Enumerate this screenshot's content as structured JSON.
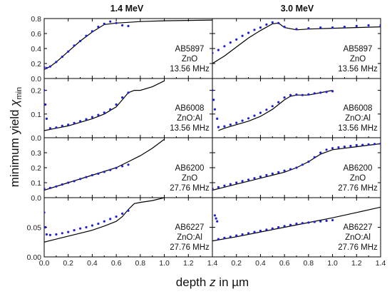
{
  "figure": {
    "column_titles": [
      "1.4 MeV",
      "3.0 MeV"
    ],
    "ylabel": {
      "prefix": "minimum yield ",
      "symbol": "χ",
      "subscript": "min"
    },
    "xlabel": {
      "prefix": "depth ",
      "variable": "z",
      "suffix": " in µm"
    }
  },
  "chart_data": [
    {
      "type": "scatter",
      "row": 0,
      "col": 0,
      "title": "1.4 MeV",
      "annotation": [
        "AB5897",
        "ZnO",
        "13.56 MHz"
      ],
      "xlim": [
        0,
        1.4
      ],
      "ylim": [
        0,
        0.8
      ],
      "xticks": [
        0.0,
        0.2,
        0.4,
        0.6,
        0.8,
        1.0,
        1.2,
        1.4
      ],
      "yticks": [
        0.0,
        0.2,
        0.4,
        0.6,
        0.8
      ],
      "ytick_labels": [
        "0.0",
        "0.2",
        "0.4",
        "0.6",
        "0.8"
      ],
      "series": [
        {
          "kind": "line",
          "x": [
            0,
            0.05,
            0.1,
            0.2,
            0.3,
            0.4,
            0.5,
            0.6,
            0.7,
            0.8,
            1.0,
            1.2,
            1.4
          ],
          "y": [
            0.12,
            0.16,
            0.22,
            0.36,
            0.5,
            0.62,
            0.72,
            0.74,
            0.75,
            0.76,
            0.77,
            0.775,
            0.78
          ]
        },
        {
          "kind": "points",
          "x": [
            0,
            0.02,
            0.05,
            0.1,
            0.15,
            0.2,
            0.25,
            0.3,
            0.35,
            0.4,
            0.45,
            0.5,
            0.55,
            0.6,
            0.65,
            0.7
          ],
          "y": [
            0.15,
            0.14,
            0.16,
            0.22,
            0.29,
            0.36,
            0.44,
            0.5,
            0.57,
            0.63,
            0.69,
            0.73,
            0.76,
            0.74,
            0.71,
            0.7
          ]
        }
      ]
    },
    {
      "type": "scatter",
      "row": 0,
      "col": 1,
      "title": "3.0 MeV",
      "annotation": [
        "AB5897",
        "ZnO",
        "13.56 MHz"
      ],
      "xlim": [
        0,
        1.4
      ],
      "ylim": [
        0,
        0.8
      ],
      "xticks": [
        0.0,
        0.2,
        0.4,
        0.6,
        0.8,
        1.0,
        1.2,
        1.4
      ],
      "yticks": [
        0.0,
        0.2,
        0.4,
        0.6,
        0.8
      ],
      "ytick_labels": [
        "",
        "",
        "",
        "",
        ""
      ],
      "series": [
        {
          "kind": "line",
          "x": [
            0,
            0.1,
            0.2,
            0.3,
            0.4,
            0.5,
            0.55,
            0.6,
            0.7,
            0.8,
            1.0,
            1.2,
            1.4
          ],
          "y": [
            0.2,
            0.3,
            0.42,
            0.54,
            0.64,
            0.73,
            0.74,
            0.68,
            0.65,
            0.66,
            0.67,
            0.68,
            0.69
          ]
        },
        {
          "kind": "points",
          "x": [
            0,
            0.05,
            0.1,
            0.15,
            0.2,
            0.25,
            0.3,
            0.35,
            0.4,
            0.45,
            0.5,
            0.55,
            0.6,
            0.7,
            0.8,
            0.9,
            1.0,
            1.1,
            1.2,
            1.3,
            1.4
          ],
          "y": [
            0.34,
            0.38,
            0.43,
            0.48,
            0.52,
            0.57,
            0.61,
            0.65,
            0.68,
            0.72,
            0.75,
            0.74,
            0.69,
            0.66,
            0.67,
            0.68,
            0.68,
            0.69,
            0.7,
            0.71,
            0.71
          ]
        }
      ]
    },
    {
      "type": "scatter",
      "row": 1,
      "col": 0,
      "annotation": [
        "AB6008",
        "ZnO:Al",
        "13.56 MHz"
      ],
      "xlim": [
        0,
        1.4
      ],
      "ylim": [
        0,
        0.25
      ],
      "xticks": [
        0.0,
        0.2,
        0.4,
        0.6,
        0.8,
        1.0,
        1.2,
        1.4
      ],
      "yticks": [
        0.0,
        0.1,
        0.2
      ],
      "ytick_labels": [
        "0.0",
        "0.1",
        "0.2"
      ],
      "series": [
        {
          "kind": "line",
          "x": [
            0,
            0.1,
            0.2,
            0.3,
            0.4,
            0.5,
            0.6,
            0.65,
            0.7,
            0.75,
            0.8,
            0.9,
            1.0
          ],
          "y": [
            0.03,
            0.04,
            0.05,
            0.065,
            0.08,
            0.1,
            0.13,
            0.16,
            0.19,
            0.2,
            0.2,
            0.215,
            0.24
          ]
        },
        {
          "kind": "points",
          "x": [
            0,
            0.01,
            0.02,
            0.05,
            0.1,
            0.15,
            0.2,
            0.25,
            0.3,
            0.35,
            0.4,
            0.45,
            0.5,
            0.55,
            0.6,
            0.65,
            0.7
          ],
          "y": [
            0.2,
            0.14,
            0.08,
            0.04,
            0.043,
            0.05,
            0.055,
            0.062,
            0.07,
            0.078,
            0.087,
            0.096,
            0.106,
            0.12,
            0.14,
            0.17,
            0.19
          ]
        }
      ]
    },
    {
      "type": "scatter",
      "row": 1,
      "col": 1,
      "annotation": [
        "AB6008",
        "ZnO:Al",
        "13.56 MHz"
      ],
      "xlim": [
        0,
        1.4
      ],
      "ylim": [
        0,
        0.25
      ],
      "xticks": [
        0.0,
        0.2,
        0.4,
        0.6,
        0.8,
        1.0,
        1.2,
        1.4
      ],
      "yticks": [
        0.0,
        0.1,
        0.2
      ],
      "ytick_labels": [
        "",
        "",
        ""
      ],
      "series": [
        {
          "kind": "line",
          "x": [
            0.05,
            0.1,
            0.2,
            0.3,
            0.4,
            0.5,
            0.6,
            0.65,
            0.7,
            0.8,
            0.9,
            1.0
          ],
          "y": [
            0.03,
            0.04,
            0.055,
            0.07,
            0.09,
            0.12,
            0.16,
            0.175,
            0.18,
            0.18,
            0.19,
            0.2
          ]
        },
        {
          "kind": "points",
          "x": [
            0,
            0.01,
            0.02,
            0.04,
            0.05,
            0.1,
            0.15,
            0.2,
            0.25,
            0.3,
            0.35,
            0.4,
            0.45,
            0.5,
            0.55,
            0.6,
            0.65,
            0.7,
            0.75,
            0.8,
            0.85,
            0.9,
            0.95,
            1.0
          ],
          "y": [
            0.2,
            0.16,
            0.12,
            0.08,
            0.045,
            0.048,
            0.055,
            0.063,
            0.072,
            0.082,
            0.093,
            0.105,
            0.118,
            0.133,
            0.15,
            0.17,
            0.18,
            0.182,
            0.18,
            0.183,
            0.187,
            0.19,
            0.193,
            0.196
          ]
        }
      ]
    },
    {
      "type": "scatter",
      "row": 2,
      "col": 0,
      "annotation": [
        "AB6200",
        "ZnO",
        "27.76 MHz"
      ],
      "xlim": [
        0,
        1.4
      ],
      "ylim": [
        0,
        0.4
      ],
      "xticks": [
        0.0,
        0.2,
        0.4,
        0.6,
        0.8,
        1.0,
        1.2,
        1.4
      ],
      "yticks": [
        0.0,
        0.1,
        0.2,
        0.3
      ],
      "ytick_labels": [
        "0.0",
        "0.1",
        "0.2",
        "0.3"
      ],
      "series": [
        {
          "kind": "line",
          "x": [
            0,
            0.2,
            0.4,
            0.6,
            0.7,
            0.8,
            0.9,
            1.0
          ],
          "y": [
            0.05,
            0.1,
            0.15,
            0.2,
            0.24,
            0.28,
            0.33,
            0.39
          ]
        },
        {
          "kind": "points",
          "x": [
            0,
            0.05,
            0.1,
            0.15,
            0.2,
            0.25,
            0.3,
            0.35,
            0.4,
            0.45,
            0.5,
            0.55,
            0.6,
            0.65,
            0.7
          ],
          "y": [
            0.06,
            0.065,
            0.075,
            0.088,
            0.1,
            0.11,
            0.125,
            0.137,
            0.15,
            0.16,
            0.172,
            0.185,
            0.198,
            0.21,
            0.22
          ]
        }
      ]
    },
    {
      "type": "scatter",
      "row": 2,
      "col": 1,
      "annotation": [
        "AB6200",
        "ZnO",
        "27.76 MHz"
      ],
      "xlim": [
        0,
        1.4
      ],
      "ylim": [
        0,
        0.4
      ],
      "xticks": [
        0.0,
        0.2,
        0.4,
        0.6,
        0.8,
        1.0,
        1.2,
        1.4
      ],
      "yticks": [
        0.0,
        0.1,
        0.2,
        0.3
      ],
      "ytick_labels": [
        "",
        "",
        "",
        ""
      ],
      "series": [
        {
          "kind": "line",
          "x": [
            0,
            0.1,
            0.2,
            0.3,
            0.4,
            0.5,
            0.6,
            0.7,
            0.8,
            0.9,
            1.0,
            1.1,
            1.2,
            1.3,
            1.4
          ],
          "y": [
            0.05,
            0.07,
            0.09,
            0.11,
            0.13,
            0.15,
            0.17,
            0.2,
            0.24,
            0.29,
            0.32,
            0.33,
            0.34,
            0.35,
            0.36
          ]
        },
        {
          "kind": "points",
          "x": [
            0,
            0.05,
            0.1,
            0.15,
            0.2,
            0.25,
            0.3,
            0.35,
            0.4,
            0.45,
            0.5,
            0.55,
            0.6,
            0.65,
            0.7,
            0.75,
            0.8,
            0.85,
            0.9,
            0.95,
            1.0,
            1.05,
            1.1,
            1.15,
            1.2,
            1.25,
            1.3,
            1.35,
            1.4
          ],
          "y": [
            0.06,
            0.07,
            0.08,
            0.09,
            0.1,
            0.11,
            0.12,
            0.13,
            0.14,
            0.15,
            0.16,
            0.17,
            0.18,
            0.19,
            0.2,
            0.22,
            0.24,
            0.27,
            0.3,
            0.32,
            0.33,
            0.335,
            0.34,
            0.345,
            0.35,
            0.352,
            0.355,
            0.358,
            0.36
          ]
        }
      ]
    },
    {
      "type": "scatter",
      "row": 3,
      "col": 0,
      "annotation": [
        "AB6227",
        "ZnO:Al",
        "27.76 MHz"
      ],
      "xlim": [
        0,
        1.4
      ],
      "ylim": [
        0,
        0.1
      ],
      "xticks": [
        0.0,
        0.2,
        0.4,
        0.6,
        0.8,
        1.0,
        1.2,
        1.4
      ],
      "xtick_labels": [
        "0.0",
        "0.2",
        "0.4",
        "0.6",
        "0.8",
        "1.0",
        "1.2",
        "1.4"
      ],
      "yticks": [
        0.0,
        0.05
      ],
      "ytick_labels": [
        "0.00",
        "0.05"
      ],
      "series": [
        {
          "kind": "line",
          "x": [
            0,
            0.1,
            0.2,
            0.3,
            0.4,
            0.5,
            0.6,
            0.65,
            0.7,
            0.75,
            0.8,
            0.9,
            1.0
          ],
          "y": [
            0.025,
            0.03,
            0.035,
            0.04,
            0.045,
            0.052,
            0.06,
            0.068,
            0.08,
            0.09,
            0.092,
            0.095,
            0.1
          ]
        },
        {
          "kind": "points",
          "x": [
            0,
            0.01,
            0.02,
            0.05,
            0.1,
            0.15,
            0.2,
            0.25,
            0.3,
            0.35,
            0.4,
            0.45,
            0.5,
            0.55,
            0.6,
            0.65,
            0.7
          ],
          "y": [
            0.075,
            0.05,
            0.038,
            0.037,
            0.038,
            0.04,
            0.042,
            0.045,
            0.048,
            0.05,
            0.053,
            0.056,
            0.06,
            0.064,
            0.068,
            0.073,
            0.078
          ]
        }
      ]
    },
    {
      "type": "scatter",
      "row": 3,
      "col": 1,
      "annotation": [
        "AB6227",
        "ZnO:Al",
        "27.76 MHz"
      ],
      "xlim": [
        0,
        1.4
      ],
      "ylim": [
        0,
        0.1
      ],
      "xticks": [
        0.0,
        0.2,
        0.4,
        0.6,
        0.8,
        1.0,
        1.2,
        1.4
      ],
      "xtick_labels": [
        "",
        "0.2",
        "0.4",
        "0.6",
        "0.8",
        "1.0",
        "1.2",
        "1.4"
      ],
      "yticks": [
        0.0,
        0.05
      ],
      "ytick_labels": [
        "",
        ""
      ],
      "series": [
        {
          "kind": "line",
          "x": [
            0,
            0.2,
            0.4,
            0.6,
            0.8,
            1.0,
            1.2,
            1.4
          ],
          "y": [
            0.027,
            0.034,
            0.042,
            0.05,
            0.058,
            0.066,
            0.075,
            0.084
          ]
        },
        {
          "kind": "points",
          "x": [
            0.02,
            0.03,
            0.04,
            0.05,
            0.1,
            0.15,
            0.2,
            0.25,
            0.3,
            0.35,
            0.4,
            0.45,
            0.5,
            0.55,
            0.6,
            0.65,
            0.7,
            0.75,
            0.8,
            0.85,
            0.9,
            0.95,
            1.0
          ],
          "y": [
            0.07,
            0.065,
            0.06,
            0.03,
            0.032,
            0.034,
            0.036,
            0.038,
            0.04,
            0.042,
            0.044,
            0.046,
            0.048,
            0.05,
            0.052,
            0.054,
            0.056,
            0.057,
            0.058,
            0.059,
            0.06,
            0.061,
            0.062
          ]
        }
      ]
    }
  ]
}
